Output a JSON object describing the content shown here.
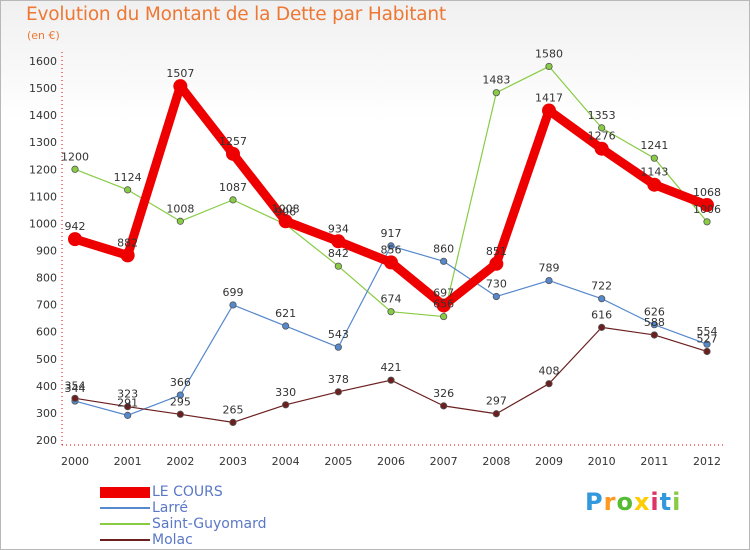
{
  "chart_data": {
    "type": "line",
    "title": "Evolution du Montant de la Dette par Habitant",
    "ylabel": "(en €)",
    "categories": [
      "2000",
      "2001",
      "2002",
      "2003",
      "2004",
      "2005",
      "2006",
      "2007",
      "2008",
      "2009",
      "2010",
      "2011",
      "2012"
    ],
    "ylim": [
      200,
      1600
    ],
    "yticks": [
      200,
      300,
      400,
      500,
      600,
      700,
      800,
      900,
      1000,
      1100,
      1200,
      1300,
      1400,
      1500,
      1600
    ],
    "grid": false,
    "legend_position": "bottom-left",
    "series": [
      {
        "name": "LE COURS",
        "color": "#ee0000",
        "values": [
          942,
          882,
          1507,
          1257,
          1008,
          934,
          856,
          697,
          851,
          1417,
          1276,
          1143,
          1068
        ]
      },
      {
        "name": "Larré",
        "color": "#5588cc",
        "values": [
          344,
          291,
          366,
          699,
          621,
          543,
          917,
          860,
          730,
          789,
          722,
          626,
          554
        ]
      },
      {
        "name": "Saint-Guyomard",
        "color": "#88cc44",
        "values": [
          1200,
          1124,
          1008,
          1087,
          996,
          842,
          674,
          656,
          1483,
          1580,
          1353,
          1241,
          1006
        ]
      },
      {
        "name": "Molac",
        "color": "#6b1f1f",
        "values": [
          354,
          323,
          295,
          265,
          330,
          378,
          421,
          326,
          297,
          408,
          616,
          588,
          527
        ]
      }
    ]
  },
  "brand": {
    "letters": [
      "P",
      "r",
      "o",
      "x",
      "i",
      "t",
      "i"
    ],
    "colors": [
      "#3399dd",
      "#ff9922",
      "#55bb33",
      "#ffcc00",
      "#dd3366",
      "#3399dd",
      "#88cc44"
    ]
  }
}
